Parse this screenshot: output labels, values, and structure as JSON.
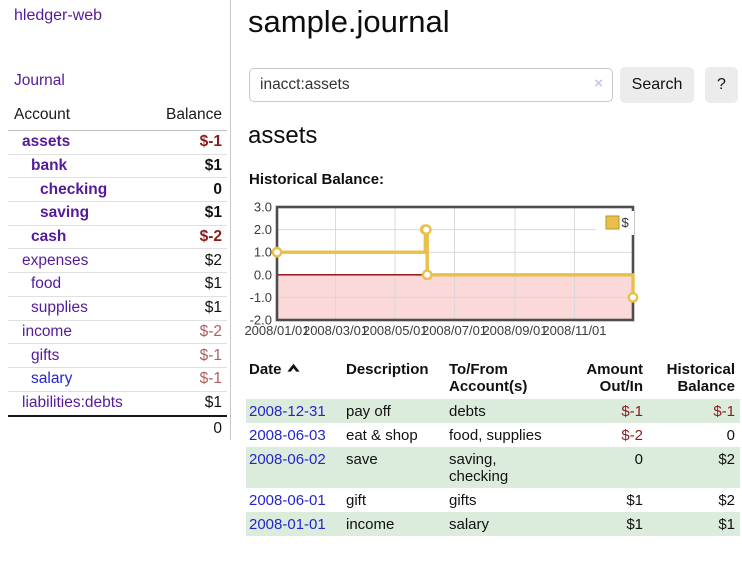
{
  "app": {
    "title": "hledger-web"
  },
  "colors": {
    "link_purple": "#551a9b",
    "link_blue": "#2525cc",
    "negative_strong": "#8b1a1a",
    "negative_muted": "#b06060",
    "row_green": "#dcecdc",
    "series_gold": "#e8c04a"
  },
  "sidebar": {
    "journal_label": "Journal",
    "headers": [
      "Account",
      "Balance"
    ],
    "accounts": [
      {
        "name": "assets",
        "balance": "$-1"
      },
      {
        "name": "bank",
        "balance": "$1"
      },
      {
        "name": "checking",
        "balance": "0"
      },
      {
        "name": "saving",
        "balance": "$1"
      },
      {
        "name": "cash",
        "balance": "$-2"
      },
      {
        "name": "expenses",
        "balance": "$2"
      },
      {
        "name": "food",
        "balance": "$1"
      },
      {
        "name": "supplies",
        "balance": "$1"
      },
      {
        "name": "income",
        "balance": "$-2"
      },
      {
        "name": "gifts",
        "balance": "$-1"
      },
      {
        "name": "salary",
        "balance": "$-1"
      },
      {
        "name": "liabilities:debts",
        "balance": "$1"
      }
    ],
    "total": "0"
  },
  "main": {
    "title": "sample.journal",
    "search": {
      "value": "inacct:assets",
      "clear_icon": "×",
      "button_label": "Search",
      "help_label": "?"
    },
    "account_heading": "assets",
    "chart_label": "Historical Balance:"
  },
  "chart_data": {
    "type": "line",
    "title": "Historical Balance",
    "step": true,
    "legend": {
      "label": "$",
      "position": "top-right"
    },
    "series": [
      {
        "name": "$",
        "color": "#e8c04a",
        "marker": "open-circle",
        "points": [
          [
            "2008-01-01",
            1
          ],
          [
            "2008-06-01",
            2
          ],
          [
            "2008-06-02",
            2
          ],
          [
            "2008-06-03",
            0
          ],
          [
            "2008-12-31",
            -1
          ]
        ]
      }
    ],
    "x_range": [
      "2008-01-01",
      "2008-12-31"
    ],
    "y_range": [
      -2,
      3
    ],
    "y_ticks": [
      3,
      2,
      1,
      0,
      -1,
      -2
    ],
    "x_ticks": [
      "2008/01/01",
      "2008/03/01",
      "2008/05/01",
      "2008/07/01",
      "2008/09/01",
      "2008/11/01"
    ],
    "grid": true,
    "zero_line_color": "#8b0000",
    "negative_region_color": "#fbd9d9",
    "grid_color": "#d9d9d9",
    "border_color": "#4d4d4d"
  },
  "transactions": {
    "headers": [
      "Date",
      "Description",
      "To/From Account(s)",
      "Amount Out/In",
      "Historical Balance"
    ],
    "rows": [
      {
        "date": "2008-12-31",
        "description": "pay off",
        "accounts": "debts",
        "amount": "$-1",
        "balance": "$-1"
      },
      {
        "date": "2008-06-03",
        "description": "eat & shop",
        "accounts": "food, supplies",
        "amount": "$-2",
        "balance": "0"
      },
      {
        "date": "2008-06-02",
        "description": "save",
        "accounts": "saving, checking",
        "amount": "0",
        "balance": "$2"
      },
      {
        "date": "2008-06-01",
        "description": "gift",
        "accounts": "gifts",
        "amount": "$1",
        "balance": "$2"
      },
      {
        "date": "2008-01-01",
        "description": "income",
        "accounts": "salary",
        "amount": "$1",
        "balance": "$1"
      }
    ]
  }
}
